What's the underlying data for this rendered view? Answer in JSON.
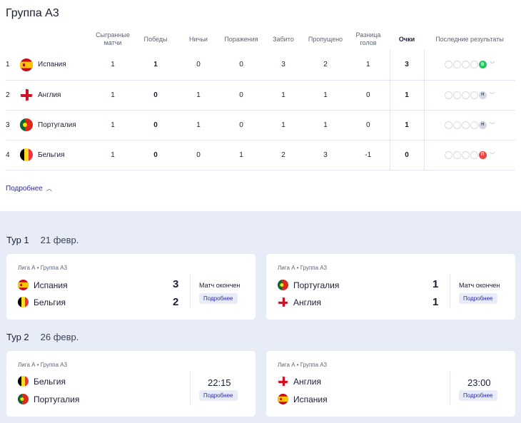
{
  "group_title": "Группа А3",
  "headers": {
    "played": "Сыгранные матчи",
    "wins": "Победы",
    "draws": "Ничьи",
    "losses": "Поражения",
    "scored": "Забито",
    "conceded": "Пропущено",
    "diff": "Разница голов",
    "points": "Очки",
    "form": "Последние результаты"
  },
  "standings": [
    {
      "pos": "1",
      "team": "Испания",
      "flag": "spain-flag-icon",
      "played": "1",
      "wins": "1",
      "draws": "0",
      "losses": "0",
      "scored": "3",
      "conceded": "2",
      "diff": "1",
      "points": "3",
      "last": "В",
      "last_type": "w"
    },
    {
      "pos": "2",
      "team": "Англия",
      "flag": "england-flag-icon",
      "played": "1",
      "wins": "0",
      "draws": "1",
      "losses": "0",
      "scored": "1",
      "conceded": "1",
      "diff": "0",
      "points": "1",
      "last": "Н",
      "last_type": "d"
    },
    {
      "pos": "3",
      "team": "Португалия",
      "flag": "portugal-flag-icon",
      "played": "1",
      "wins": "0",
      "draws": "1",
      "losses": "0",
      "scored": "1",
      "conceded": "1",
      "diff": "0",
      "points": "1",
      "last": "Н",
      "last_type": "d"
    },
    {
      "pos": "4",
      "team": "Бельгия",
      "flag": "belgium-flag-icon",
      "played": "1",
      "wins": "0",
      "draws": "0",
      "losses": "1",
      "scored": "2",
      "conceded": "3",
      "diff": "-1",
      "points": "0",
      "last": "П",
      "last_type": "l"
    }
  ],
  "more_label": "Подробнее",
  "rounds": [
    {
      "name": "Тур 1",
      "date": "21 февр."
    },
    {
      "name": "Тур 2",
      "date": "26 февр."
    }
  ],
  "matches": [
    {
      "league": "Лига А • Группа А3",
      "home": "Испания",
      "away": "Бельгия",
      "home_score": "3",
      "away_score": "2",
      "status": "Матч окончен",
      "button": "Подробнее"
    },
    {
      "league": "Лига А • Группа А3",
      "home": "Португалия",
      "away": "Англия",
      "home_score": "1",
      "away_score": "1",
      "status": "Матч окончен",
      "button": "Подробнее"
    },
    {
      "league": "Лига А • Группа А3",
      "home": "Бельгия",
      "away": "Португалия",
      "time": "22:15",
      "button": "Подробнее"
    },
    {
      "league": "Лига А • Группа А3",
      "home": "Англия",
      "away": "Испания",
      "time": "23:00",
      "button": "Подробнее"
    }
  ]
}
